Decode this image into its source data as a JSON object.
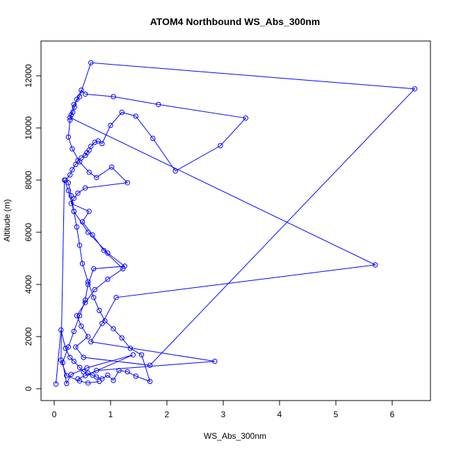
{
  "chart_data": {
    "type": "line",
    "title": "ATOM4 Northbound WS_Abs_300nm",
    "xlabel": "WS_Abs_300nm",
    "ylabel": "Altitude (m)",
    "xlim": [
      0,
      6.5
    ],
    "ylim": [
      0,
      12500
    ],
    "x_ticks": [
      0,
      1,
      2,
      3,
      4,
      5,
      6
    ],
    "y_ticks": [
      0,
      2000,
      4000,
      6000,
      8000,
      10000,
      12000
    ],
    "grid": false,
    "legend": "none",
    "color": "#0000ff",
    "marker": "open-circle",
    "series": [
      {
        "x": [
          0.03,
          0.12,
          0.2,
          0.28,
          0.35,
          0.45,
          0.52,
          0.6,
          0.68,
          0.75,
          0.85,
          0.95,
          1.05,
          1.15,
          1.3,
          1.45,
          1.7,
          1.55,
          1.35,
          1.2,
          1.05,
          0.9,
          0.8,
          0.7,
          0.6,
          0.5,
          0.45,
          0.4,
          0.35,
          0.3,
          0.25,
          0.2,
          0.28,
          0.32,
          0.38,
          0.42,
          0.48,
          0.55,
          0.58,
          0.62,
          0.65,
          0.72,
          0.78,
          0.85,
          1.0,
          1.2,
          1.45,
          1.75,
          2.15,
          2.95,
          3.4,
          1.85,
          1.05,
          0.55,
          0.48,
          0.4,
          0.36,
          0.33,
          0.3,
          0.28,
          0.25,
          0.32,
          0.45,
          0.62,
          0.75,
          1.02,
          1.3,
          0.55,
          0.42,
          0.35,
          0.3,
          0.62,
          0.5,
          0.68,
          0.88,
          1.22,
          0.95,
          0.72,
          0.55,
          0.4,
          0.48,
          0.6,
          0.38,
          0.52,
          1.7,
          6.4,
          0.65,
          0.45,
          0.35,
          0.28,
          5.7,
          1.1,
          0.85,
          0.65,
          2.85,
          0.75,
          0.55,
          0.42,
          1.4,
          0.58,
          0.3,
          0.22,
          0.15,
          0.25,
          0.35,
          0.45,
          0.55,
          0.6,
          0.7,
          1.25,
          0.95,
          0.6,
          0.35,
          0.25,
          0.18,
          0.12,
          0.22,
          0.45,
          0.6,
          0.8
        ],
        "y": [
          180,
          2250,
          1550,
          1200,
          1050,
          820,
          650,
          600,
          520,
          450,
          380,
          520,
          320,
          700,
          650,
          480,
          280,
          1300,
          1550,
          1950,
          2300,
          2600,
          3000,
          3500,
          4100,
          4800,
          5500,
          6200,
          6800,
          7400,
          7900,
          8000,
          8200,
          8400,
          8600,
          8750,
          8850,
          8950,
          9050,
          9150,
          9300,
          9450,
          9500,
          9400,
          10100,
          10600,
          10450,
          9600,
          8350,
          9320,
          10380,
          10900,
          11200,
          11300,
          11450,
          11100,
          10800,
          10600,
          10500,
          10300,
          9650,
          9200,
          8700,
          8300,
          8100,
          8500,
          7900,
          7700,
          7500,
          7300,
          7100,
          6800,
          6400,
          5900,
          5300,
          4600,
          4200,
          3800,
          3300,
          2800,
          2400,
          2000,
          1600,
          1200,
          900,
          11500,
          12500,
          11200,
          10900,
          10400,
          4750,
          3500,
          2500,
          1800,
          1050,
          700,
          500,
          380,
          1300,
          800,
          550,
          200,
          1000,
          1600,
          2200,
          2800,
          3400,
          4000,
          4600,
          4700,
          5200,
          6000,
          6800,
          7600,
          8000,
          1100,
          500,
          300,
          220,
          280
        ]
      }
    ]
  }
}
